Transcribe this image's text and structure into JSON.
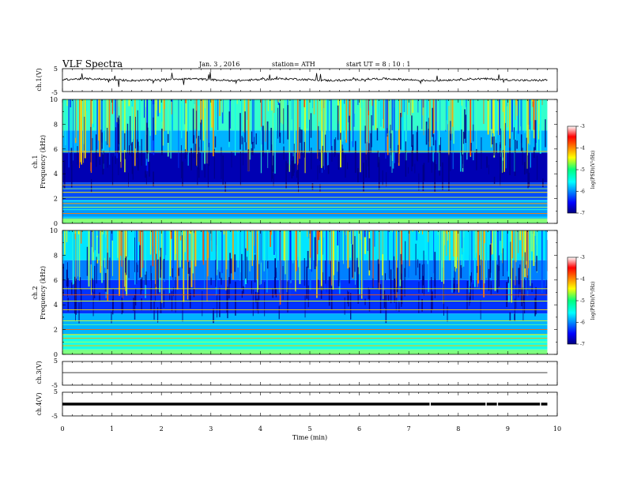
{
  "header": {
    "title": "VLF  Spectra",
    "date": "Jan.  3  ,  2016",
    "station": "station= ATH",
    "start": "start  UT  =   8  : 10 : 1"
  },
  "chart_data": [
    {
      "type": "line",
      "panel": "ch1-waveform",
      "ylabel": "ch.1(V)",
      "yticks": [
        "5",
        "-5"
      ],
      "ylim": [
        -5,
        5
      ],
      "xlim": [
        0,
        10
      ],
      "data_end_min": 9.8,
      "description": "continuous noisy waveform near 0 V with spikes"
    },
    {
      "type": "heatmap",
      "panel": "ch1-spectrogram",
      "ylabel": "ch.1\nFrequency  (kHz)",
      "ylabel_lines": [
        "ch.1",
        "Frequency  (kHz)"
      ],
      "yticks": [
        "0",
        "2",
        "4",
        "6",
        "8",
        "10"
      ],
      "ylim": [
        0,
        10
      ],
      "xlim": [
        0,
        10
      ],
      "colorbar": {
        "label": "log(PSD)(V²/Hz)",
        "ticks": [
          "-3",
          "-4",
          "-5",
          "-6",
          "-7"
        ],
        "range": [
          -7,
          -3
        ],
        "colormap": "jet"
      },
      "bands": [
        {
          "from": 0,
          "to": 0.4,
          "level": -5.0
        },
        {
          "from": 0.4,
          "to": 1.9,
          "level": -5.9
        },
        {
          "from": 1.9,
          "to": 3.3,
          "level": -6.2
        },
        {
          "from": 3.3,
          "to": 5.7,
          "level": -6.8
        },
        {
          "from": 5.7,
          "to": 7.5,
          "level": -5.8
        },
        {
          "from": 7.5,
          "to": 10,
          "level": -5.3
        }
      ],
      "lines_khz": [
        0.2,
        0.5,
        0.8,
        1.1,
        1.3,
        1.6,
        1.8,
        2.1,
        2.5,
        2.8,
        3.1,
        5.8
      ]
    },
    {
      "type": "heatmap",
      "panel": "ch2-spectrogram",
      "ylabel": "ch.2\nFrequency  (kHz)",
      "ylabel_lines": [
        "ch.2",
        "Frequency  (kHz)"
      ],
      "yticks": [
        "0",
        "2",
        "4",
        "6",
        "8",
        "10"
      ],
      "ylim": [
        0,
        10
      ],
      "xlim": [
        0,
        10
      ],
      "colorbar": {
        "label": "log(PSD)(V²/Hz)",
        "ticks": [
          "-3",
          "-4",
          "-5",
          "-6",
          "-7"
        ],
        "range": [
          -7,
          -3
        ],
        "colormap": "jet"
      },
      "bands": [
        {
          "from": 0,
          "to": 0.4,
          "level": -5.0
        },
        {
          "from": 0.4,
          "to": 1.6,
          "level": -5.4
        },
        {
          "from": 1.6,
          "to": 3.3,
          "level": -5.8
        },
        {
          "from": 3.3,
          "to": 6.0,
          "level": -6.3
        },
        {
          "from": 6.0,
          "to": 7.6,
          "level": -6.0
        },
        {
          "from": 7.6,
          "to": 10,
          "level": -5.6
        }
      ],
      "lines_khz": [
        0.3,
        0.7,
        1.0,
        1.3,
        1.6,
        2.0,
        2.4,
        2.7,
        3.6,
        4.3,
        4.8,
        5.3
      ]
    },
    {
      "type": "line",
      "panel": "ch3-waveform",
      "ylabel": "ch.3(V)",
      "yticks": [
        "5",
        "-5"
      ],
      "ylim": [
        -5,
        5
      ],
      "xlim": [
        0,
        10
      ],
      "data_end_min": 9.8,
      "description": "flat line near 0 V"
    },
    {
      "type": "line",
      "panel": "ch4-waveform",
      "ylabel": "ch.4(V)",
      "yticks": [
        "5",
        "-5"
      ],
      "ylim": [
        -5,
        5
      ],
      "xlim": [
        0,
        10
      ],
      "data_end_min": 9.8,
      "description": "thick constant trace near 0 V with small gaps"
    }
  ],
  "xaxis": {
    "label": "Time  (min)",
    "ticks": [
      "0",
      "1",
      "2",
      "3",
      "4",
      "5",
      "6",
      "7",
      "8",
      "9",
      "10"
    ],
    "range": [
      0,
      10
    ]
  }
}
